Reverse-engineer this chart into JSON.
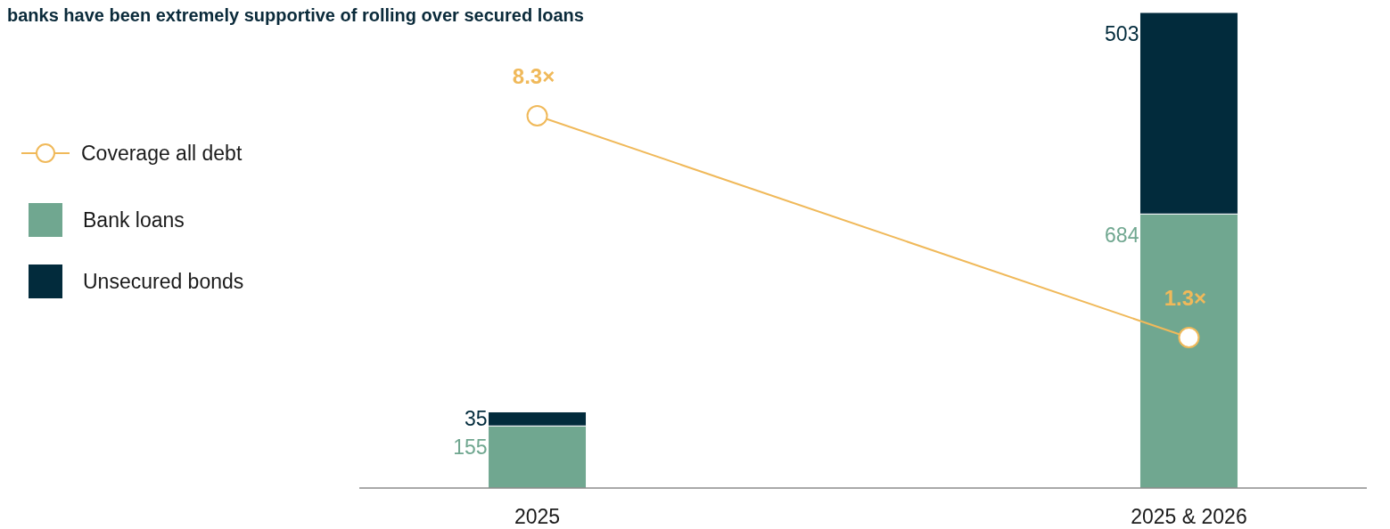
{
  "chart_data": {
    "type": "bar",
    "title": "banks have been extremely supportive of rolling over secured loans",
    "categories": [
      "2025",
      "2025 & 2026"
    ],
    "stacked": true,
    "data_labels": true,
    "legend": "left",
    "marker": "circle",
    "tick_labels": "x",
    "series": [
      {
        "name": "Coverage all debt",
        "type": "line",
        "axis": "y2",
        "color": "#f0b95a",
        "values": [
          8.3,
          1.3
        ],
        "value_labels": [
          "8.3×",
          "1.3×"
        ]
      },
      {
        "name": "Bank loans",
        "color": "#70a790",
        "values": [
          155,
          684
        ]
      },
      {
        "name": "Unsecured bonds",
        "color": "#022b3c",
        "values": [
          35,
          503
        ]
      }
    ]
  }
}
